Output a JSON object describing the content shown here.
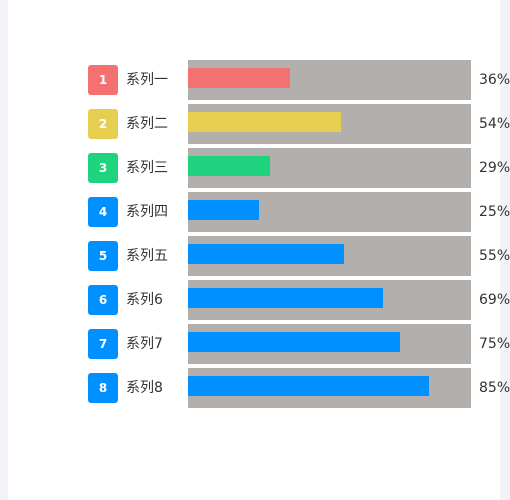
{
  "chart_data": {
    "type": "bar",
    "orientation": "horizontal",
    "categories": [
      "系列一",
      "系列二",
      "系列三",
      "系列四",
      "系列五",
      "系列6",
      "系列7",
      "系列8"
    ],
    "ranks": [
      "1",
      "2",
      "3",
      "4",
      "5",
      "6",
      "7",
      "8"
    ],
    "values": [
      36,
      54,
      29,
      25,
      55,
      69,
      75,
      85
    ],
    "value_labels": [
      "36%",
      "54%",
      "29%",
      "25%",
      "55%",
      "69%",
      "75%",
      "85%"
    ],
    "xlim": [
      0,
      100
    ],
    "grid": false,
    "colors": [
      "#f47171",
      "#e6cf50",
      "#1fd37f",
      "#0090ff",
      "#0090ff",
      "#0090ff",
      "#0090ff",
      "#0090ff"
    ],
    "track_color": "#b3afad"
  }
}
